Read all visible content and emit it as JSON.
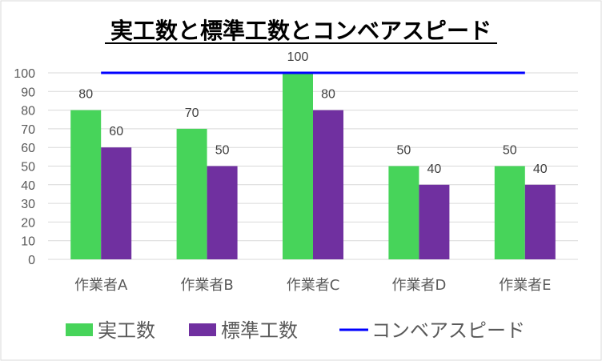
{
  "chart_data": {
    "type": "bar",
    "title": "実工数と標準工数とコンベアスピード",
    "categories": [
      "作業者A",
      "作業者B",
      "作業者C",
      "作業者D",
      "作業者E"
    ],
    "series": [
      {
        "name": "実工数",
        "type": "bar",
        "color": "#47d45a",
        "values": [
          80,
          70,
          100,
          50,
          50
        ]
      },
      {
        "name": "標準工数",
        "type": "bar",
        "color": "#7030a0",
        "values": [
          60,
          50,
          80,
          40,
          40
        ]
      },
      {
        "name": "コンベアスピード",
        "type": "line",
        "color": "#0000ff",
        "values": [
          100,
          100,
          100,
          100,
          100
        ]
      }
    ],
    "ylim": [
      0,
      100
    ],
    "yticks": [
      0,
      10,
      20,
      30,
      40,
      50,
      60,
      70,
      80,
      90,
      100
    ],
    "grid": true,
    "legend": "bottom"
  }
}
